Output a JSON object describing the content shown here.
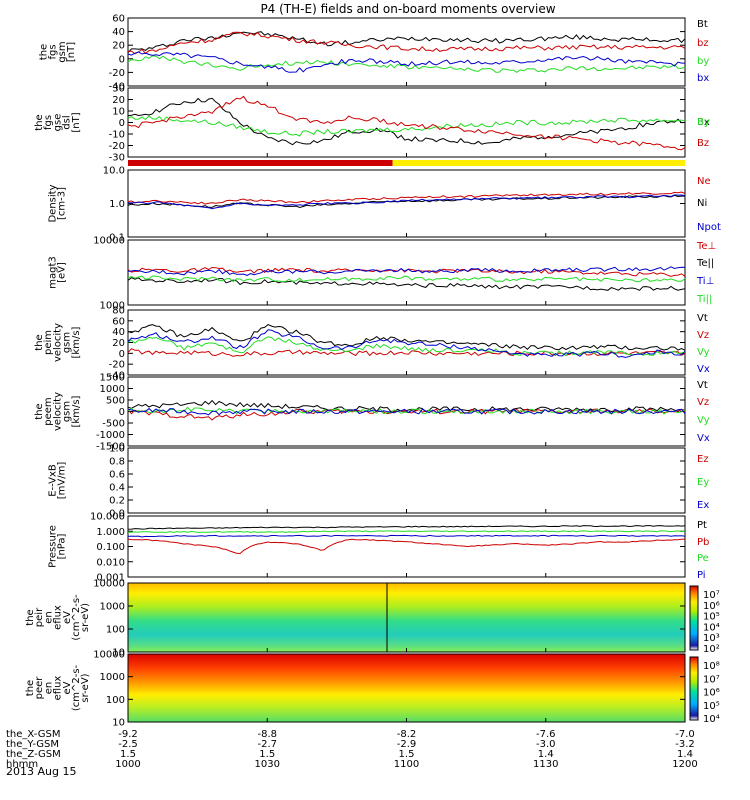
{
  "title": "P4 (TH-E) fields and on-board moments overview",
  "date_label": "2013 Aug 15",
  "ephemeris": {
    "rows": [
      {
        "label": "the_X-GSM",
        "values": [
          "-9.2",
          "-8.8",
          "-8.2",
          "-7.6",
          "-7.0"
        ]
      },
      {
        "label": "the_Y-GSM",
        "values": [
          "-2.5",
          "-2.7",
          "-2.9",
          "-3.0",
          "-3.2"
        ]
      },
      {
        "label": "the_Z-GSM",
        "values": [
          "1.5",
          "1.5",
          "1.5",
          "1.4",
          "1.4"
        ]
      },
      {
        "label": "hhmm",
        "values": [
          "1000",
          "1030",
          "1100",
          "1130",
          "1200"
        ]
      }
    ]
  },
  "colors": {
    "black": "#000000",
    "red": "#cc0000",
    "green": "#22dd22",
    "blue": "#0000cc",
    "yellow": "#ffee00"
  },
  "colorbar_tick_labels": [
    "10⁷",
    "10⁶",
    "10⁵",
    "10⁴",
    "10³",
    "10²"
  ],
  "colorbar2_tick_labels": [
    "10⁸",
    "10⁷",
    "10⁶",
    "10⁵",
    "10⁴"
  ],
  "chart_data": [
    {
      "type": "line",
      "ylabel": [
        "the",
        "fgs",
        "gsm",
        "[nT]"
      ],
      "ylim": [
        -40,
        60
      ],
      "yticks": [
        "60",
        "40",
        "20",
        "0",
        "-20",
        "-40"
      ],
      "ytick_values": [
        60,
        40,
        20,
        0,
        -20,
        -40
      ],
      "series": [
        {
          "name": "Bt",
          "color": "#000000",
          "values": [
            12,
            16,
            28,
            30,
            40,
            36,
            30,
            22,
            24,
            28,
            30,
            30,
            28,
            26,
            28,
            30,
            32,
            30,
            28,
            28,
            26
          ]
        },
        {
          "name": "bz",
          "color": "#cc0000",
          "values": [
            10,
            12,
            24,
            28,
            38,
            34,
            28,
            24,
            20,
            18,
            15,
            14,
            14,
            15,
            16,
            16,
            17,
            17,
            17,
            17,
            17
          ]
        },
        {
          "name": "by",
          "color": "#22dd22",
          "values": [
            -2,
            2,
            -4,
            -10,
            -14,
            -8,
            -6,
            -4,
            -8,
            -10,
            -12,
            -14,
            -16,
            -16,
            -18,
            -16,
            -14,
            -14,
            -14,
            -12,
            -12
          ]
        },
        {
          "name": "bx",
          "color": "#0000cc",
          "values": [
            6,
            8,
            6,
            2,
            -6,
            -12,
            -18,
            -10,
            -2,
            -4,
            -8,
            -6,
            -4,
            -6,
            -4,
            0,
            2,
            0,
            -4,
            -6,
            -8
          ]
        }
      ]
    },
    {
      "type": "line",
      "ylabel": [
        "the",
        "fgs",
        "gse",
        "dsl",
        "[nT]"
      ],
      "ylim": [
        -30,
        30
      ],
      "yticks": [
        "30",
        "20",
        "10",
        "0",
        "-10",
        "-20",
        "-30"
      ],
      "ytick_values": [
        30,
        20,
        10,
        0,
        -10,
        -20,
        -30
      ],
      "series": [
        {
          "name": "Bx",
          "color": "#000000",
          "values": [
            4,
            10,
            18,
            20,
            0,
            -14,
            -18,
            -16,
            -8,
            -6,
            -14,
            -16,
            -16,
            -18,
            -14,
            -12,
            -10,
            -8,
            -4,
            0,
            2
          ]
        },
        {
          "name": "By",
          "color": "#22dd22",
          "values": [
            4,
            4,
            2,
            0,
            -4,
            -8,
            -10,
            -8,
            -8,
            -6,
            -6,
            -4,
            -2,
            -2,
            0,
            0,
            0,
            2,
            2,
            2,
            2
          ]
        },
        {
          "name": "Bz",
          "color": "#cc0000",
          "values": [
            -4,
            0,
            6,
            8,
            22,
            14,
            4,
            0,
            4,
            2,
            -2,
            -4,
            -6,
            -8,
            -10,
            -12,
            -14,
            -16,
            -18,
            -20,
            -22
          ]
        }
      ],
      "mode_bar": {
        "red_until_hhmm": "1100",
        "colors": [
          "red",
          "yellow"
        ]
      }
    },
    {
      "type": "line",
      "ylabel": [
        "Density",
        "[cm-3]"
      ],
      "ylim": [
        0.1,
        10
      ],
      "log": true,
      "yticks": [
        "10.0",
        "1.0",
        "0.1"
      ],
      "ytick_values": [
        10,
        1,
        0.1
      ],
      "series": [
        {
          "name": "Ne",
          "color": "#cc0000",
          "values": [
            1.1,
            1.2,
            1.1,
            1.0,
            1.3,
            1.2,
            1.1,
            1.2,
            1.3,
            1.4,
            1.5,
            1.6,
            1.6,
            1.7,
            1.8,
            1.8,
            1.9,
            1.9,
            2.0,
            2.0,
            2.1
          ]
        },
        {
          "name": "Ni",
          "color": "#000000",
          "values": [
            0.9,
            1.0,
            0.9,
            0.8,
            1.0,
            0.9,
            0.8,
            0.9,
            1.0,
            1.1,
            1.2,
            1.2,
            1.3,
            1.3,
            1.4,
            1.4,
            1.5,
            1.5,
            1.6,
            1.6,
            1.7
          ]
        },
        {
          "name": "Npot",
          "color": "#0000cc",
          "values": [
            1.0,
            1.1,
            0.9,
            0.7,
            1.0,
            0.9,
            0.9,
            1.0,
            1.0,
            1.1,
            1.2,
            1.3,
            1.3,
            1.4,
            1.4,
            1.5,
            1.5,
            1.6,
            1.6,
            1.7,
            1.7
          ]
        }
      ]
    },
    {
      "type": "line",
      "ylabel": [
        "magt3",
        "[eV]"
      ],
      "ylim": [
        1000,
        10000
      ],
      "log": true,
      "yticks": [
        "10000",
        "1000"
      ],
      "ytick_values": [
        10000,
        1000
      ],
      "series": [
        {
          "name": "Te⊥",
          "color": "#cc0000",
          "values": [
            3400,
            3500,
            3300,
            3600,
            3200,
            3400,
            3500,
            3300,
            3400,
            3500,
            3400,
            3300,
            3400,
            3300,
            3200,
            3300,
            3200,
            3100,
            3000,
            3000,
            2900
          ]
        },
        {
          "name": "Te||",
          "color": "#000000",
          "values": [
            2500,
            2400,
            2300,
            2500,
            2200,
            2300,
            2200,
            2100,
            2200,
            2100,
            2000,
            2000,
            2000,
            1900,
            1900,
            1900,
            1900,
            1800,
            1800,
            1800,
            1800
          ]
        },
        {
          "name": "Ti⊥",
          "color": "#0000cc",
          "values": [
            3200,
            3300,
            3100,
            3400,
            3000,
            3200,
            3300,
            3200,
            3300,
            3400,
            3400,
            3300,
            3400,
            3400,
            3300,
            3400,
            3500,
            3500,
            3600,
            3600,
            3700
          ]
        },
        {
          "name": "Ti||",
          "color": "#22dd22",
          "values": [
            2700,
            2600,
            2500,
            2600,
            2400,
            2500,
            2400,
            2500,
            2500,
            2600,
            2600,
            2500,
            2500,
            2500,
            2400,
            2500,
            2500,
            2400,
            2400,
            2400,
            2400
          ]
        }
      ]
    },
    {
      "type": "line",
      "ylabel": [
        "the",
        "peim",
        "velocity",
        "gsm",
        "[km/s]"
      ],
      "ylim": [
        -40,
        80
      ],
      "yticks": [
        "80",
        "60",
        "40",
        "20",
        "0",
        "-20",
        "-40"
      ],
      "ytick_values": [
        80,
        60,
        40,
        20,
        0,
        -20,
        -40
      ],
      "series": [
        {
          "name": "Vt",
          "color": "#000000",
          "values": [
            40,
            50,
            30,
            45,
            20,
            50,
            40,
            20,
            15,
            30,
            25,
            20,
            18,
            15,
            12,
            10,
            10,
            12,
            10,
            10,
            8
          ]
        },
        {
          "name": "Vz",
          "color": "#cc0000",
          "values": [
            5,
            0,
            2,
            0,
            -2,
            0,
            2,
            0,
            0,
            0,
            2,
            0,
            0,
            0,
            0,
            0,
            0,
            0,
            0,
            0,
            0
          ]
        },
        {
          "name": "Vy",
          "color": "#22dd22",
          "values": [
            20,
            30,
            10,
            20,
            0,
            30,
            20,
            5,
            5,
            15,
            10,
            5,
            5,
            5,
            0,
            0,
            0,
            2,
            0,
            0,
            0
          ]
        },
        {
          "name": "Vx",
          "color": "#0000cc",
          "values": [
            25,
            35,
            20,
            30,
            10,
            40,
            30,
            10,
            10,
            25,
            20,
            15,
            12,
            5,
            0,
            -5,
            -2,
            0,
            -5,
            2,
            0
          ]
        }
      ]
    },
    {
      "type": "line",
      "ylabel": [
        "the",
        "peem",
        "velocity",
        "gsm",
        "[km/s]"
      ],
      "ylim": [
        -1500,
        1500
      ],
      "yticks": [
        "1500",
        "1000",
        "500",
        "0",
        "-500",
        "-1000",
        "-1500"
      ],
      "ytick_values": [
        1500,
        1000,
        500,
        0,
        -500,
        -1000,
        -1500
      ],
      "series": [
        {
          "name": "Vt",
          "color": "#000000",
          "values": [
            200,
            250,
            300,
            400,
            300,
            250,
            200,
            150,
            120,
            100,
            100,
            100,
            100,
            100,
            100,
            100,
            100,
            100,
            100,
            100,
            100
          ]
        },
        {
          "name": "Vz",
          "color": "#cc0000",
          "values": [
            0,
            -100,
            -200,
            -300,
            -150,
            -100,
            0,
            0,
            0,
            0,
            0,
            0,
            0,
            0,
            0,
            0,
            0,
            0,
            0,
            0,
            0
          ]
        },
        {
          "name": "Vy",
          "color": "#22dd22",
          "values": [
            50,
            50,
            100,
            50,
            0,
            50,
            0,
            0,
            20,
            0,
            0,
            0,
            0,
            0,
            0,
            0,
            0,
            0,
            0,
            0,
            0
          ]
        },
        {
          "name": "Vx",
          "color": "#0000cc",
          "values": [
            0,
            50,
            0,
            -50,
            0,
            0,
            0,
            0,
            0,
            0,
            0,
            0,
            0,
            0,
            0,
            0,
            0,
            0,
            0,
            0,
            0
          ]
        }
      ]
    },
    {
      "type": "line",
      "ylabel": [
        "E--VxB",
        "[mV/m]"
      ],
      "ylim": [
        0,
        1
      ],
      "yticks": [
        "1.0",
        "0.8",
        "0.6",
        "0.4",
        "0.2",
        "0.0"
      ],
      "ytick_values": [
        1,
        0.8,
        0.6,
        0.4,
        0.2,
        0
      ],
      "series": [
        {
          "name": "Ez",
          "color": "#cc0000",
          "values": []
        },
        {
          "name": "Ey",
          "color": "#22dd22",
          "values": []
        },
        {
          "name": "Ex",
          "color": "#0000cc",
          "values": []
        }
      ]
    },
    {
      "type": "line",
      "ylabel": [
        "Pressure",
        "[nPa]"
      ],
      "ylim": [
        0.001,
        10
      ],
      "log": true,
      "yticks": [
        "10.000",
        "1.000",
        "0.100",
        "0.010",
        "0.001"
      ],
      "ytick_values": [
        10,
        1,
        0.1,
        0.01,
        0.001
      ],
      "series": [
        {
          "name": "Pt",
          "color": "#000000",
          "values": [
            1.4,
            1.5,
            1.6,
            1.6,
            1.7,
            1.8,
            1.8,
            1.8,
            1.9,
            1.9,
            2.0,
            2.0,
            2.0,
            2.1,
            2.1,
            2.1,
            2.2,
            2.2,
            2.2,
            2.2,
            2.3
          ]
        },
        {
          "name": "Pb",
          "color": "#cc0000",
          "values": [
            0.3,
            0.25,
            0.15,
            0.1,
            0.03,
            0.2,
            0.15,
            0.05,
            0.3,
            0.25,
            0.2,
            0.15,
            0.1,
            0.12,
            0.15,
            0.12,
            0.15,
            0.2,
            0.2,
            0.25,
            0.3
          ]
        },
        {
          "name": "Pe",
          "color": "#22dd22",
          "values": [
            0.9,
            0.9,
            0.9,
            0.9,
            0.9,
            0.9,
            0.9,
            1.0,
            1.0,
            1.0,
            1.0,
            1.0,
            1.0,
            1.0,
            1.0,
            1.0,
            1.0,
            1.0,
            1.0,
            1.0,
            1.0
          ]
        },
        {
          "name": "Pi",
          "color": "#0000cc",
          "values": [
            0.45,
            0.45,
            0.5,
            0.5,
            0.5,
            0.5,
            0.5,
            0.5,
            0.5,
            0.5,
            0.5,
            0.5,
            0.5,
            0.5,
            0.5,
            0.5,
            0.5,
            0.5,
            0.5,
            0.5,
            0.5
          ]
        }
      ]
    },
    {
      "type": "heatmap",
      "ylabel": [
        "the",
        "peir",
        "en",
        "eflux",
        "eV",
        "(cm^2-s-",
        "sr-eV)"
      ],
      "ylim": [
        10,
        10000
      ],
      "log": true,
      "yticks": [
        "10000",
        "1000",
        "100",
        "10"
      ],
      "ytick_values": [
        10000,
        1000,
        100,
        10
      ]
    },
    {
      "type": "heatmap",
      "ylabel": [
        "the",
        "peer",
        "en",
        "eflux",
        "eV",
        "(cm^2-s-",
        "sr-eV)"
      ],
      "ylim": [
        10,
        10000
      ],
      "log": true,
      "yticks": [
        "10000",
        "1000",
        "100",
        "10"
      ],
      "ytick_values": [
        10000,
        1000,
        100,
        10
      ]
    }
  ]
}
